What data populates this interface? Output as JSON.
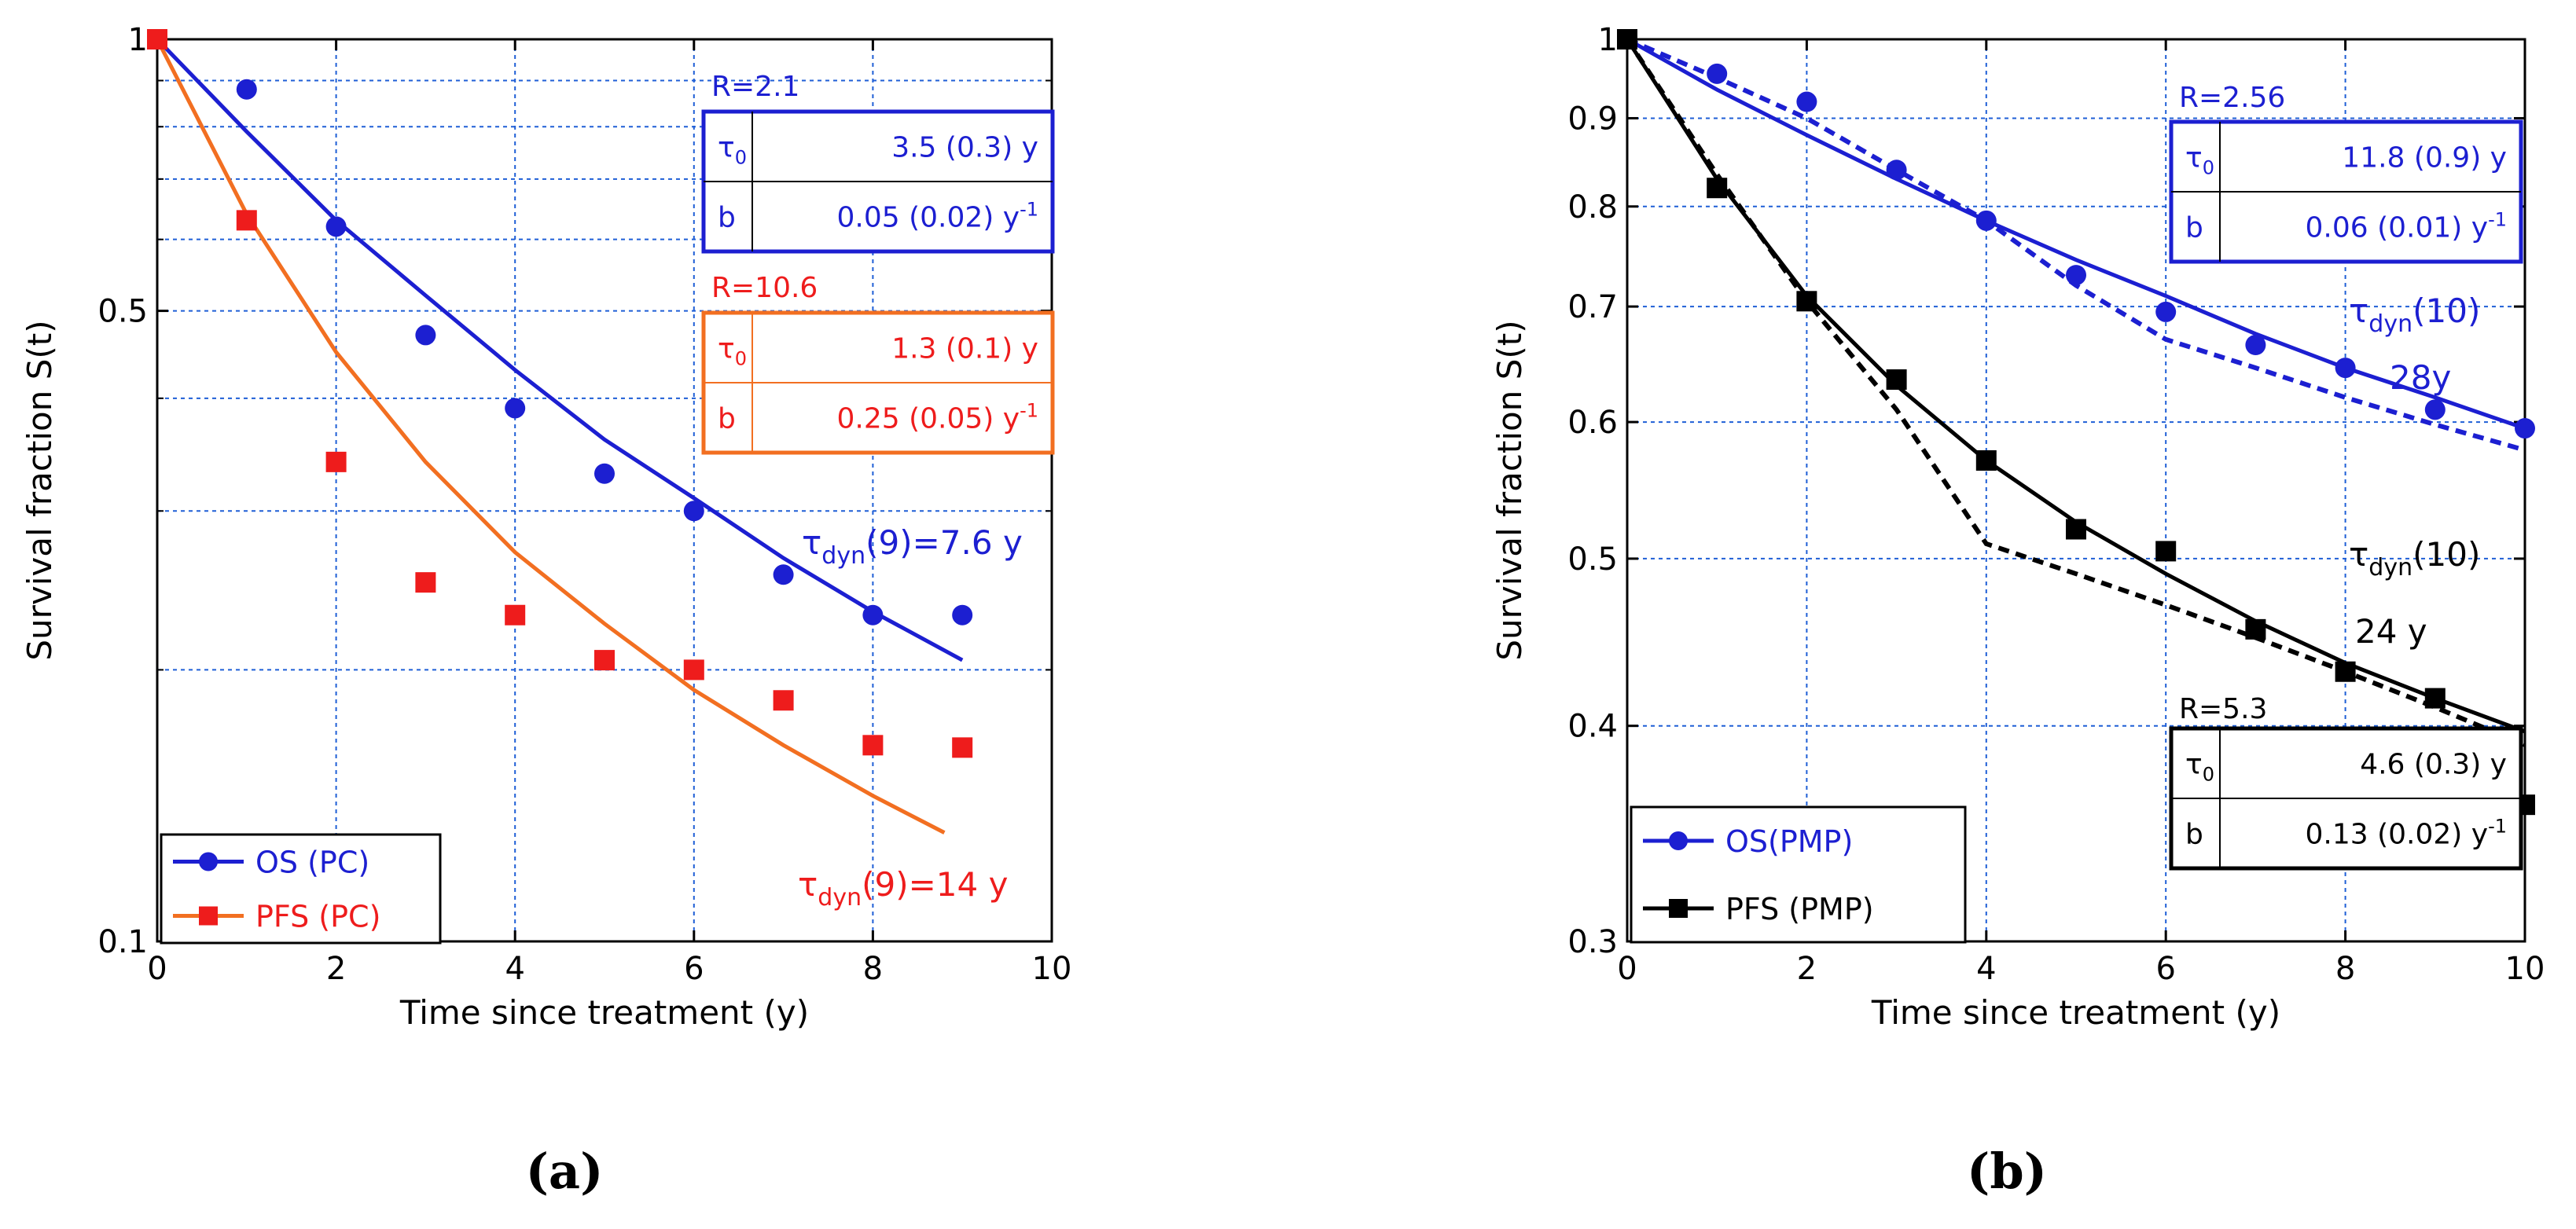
{
  "figure": {
    "panel_a_label": "(a)",
    "panel_b_label": "(b)"
  },
  "chart_data": [
    {
      "type": "scatter",
      "panel": "a",
      "xlabel": "Time since treatment (y)",
      "ylabel": "Survival fraction S(t)",
      "xlim": [
        0,
        10
      ],
      "ylim": [
        0.1,
        1
      ],
      "yscale": "log",
      "grid": true,
      "x_ticks": [
        "0",
        "2",
        "4",
        "6",
        "8",
        "10"
      ],
      "y_tick_labels": [
        "1",
        "0.5",
        "0.1"
      ],
      "y_tick_values": [
        1,
        0.5,
        0.1
      ],
      "y_grid_values": [
        0.2,
        0.3,
        0.4,
        0.5,
        0.6,
        0.7,
        0.8,
        0.9
      ],
      "legend_position": "bottom-left",
      "colors": {
        "OS (PC)": "#1c1fd1",
        "PFS (PC)": "#f26f21",
        "PFS markers": "#ee1c1c",
        "grid": "#1f5fd6"
      },
      "series": [
        {
          "name": "OS (PC)",
          "marker": "circle",
          "points": {
            "x": [
              0,
              1,
              2,
              3,
              4,
              5,
              6,
              7,
              8,
              9
            ],
            "y": [
              1.0,
              0.88,
              0.62,
              0.47,
              0.39,
              0.33,
              0.3,
              0.255,
              0.23,
              0.23
            ]
          },
          "fit": {
            "x": [
              0,
              1,
              2,
              3,
              4,
              5,
              6,
              7,
              8,
              9
            ],
            "y": [
              1.0,
              0.79,
              0.63,
              0.52,
              0.43,
              0.36,
              0.31,
              0.266,
              0.232,
              0.205
            ]
          }
        },
        {
          "name": "PFS (PC)",
          "marker": "square",
          "points": {
            "x": [
              0,
              1,
              2,
              3,
              4,
              5,
              6,
              7,
              8,
              9
            ],
            "y": [
              1.0,
              0.63,
              0.34,
              0.25,
              0.23,
              0.205,
              0.2,
              0.185,
              0.165,
              0.164
            ]
          },
          "fit": {
            "x": [
              0,
              1,
              2,
              3,
              4,
              5,
              6,
              7,
              8,
              8.8
            ],
            "y": [
              1.0,
              0.64,
              0.45,
              0.34,
              0.27,
              0.225,
              0.19,
              0.165,
              0.145,
              0.132
            ]
          }
        }
      ],
      "annotations": [
        {
          "text_parts": [
            "τ",
            "dyn",
            "(9)=7.6 y"
          ],
          "color": "#1c1fd1"
        },
        {
          "text_parts": [
            "τ",
            "dyn",
            "(9)=14 y"
          ],
          "color": "#ee1c1c"
        }
      ],
      "param_tables": [
        {
          "R": "R=2.1",
          "color": "#1c1fd1",
          "rows": [
            {
              "sym": "τ",
              "sub": "0",
              "val": "3.5 (0.3) y",
              "sup": ""
            },
            {
              "sym": "b",
              "sub": "",
              "val": "0.05 (0.02) y",
              "sup": "-1"
            }
          ]
        },
        {
          "R": "R=10.6",
          "color": "#ee1c1c",
          "border": "#f26f21",
          "rows": [
            {
              "sym": "τ",
              "sub": "0",
              "val": "1.3 (0.1) y",
              "sup": ""
            },
            {
              "sym": "b",
              "sub": "",
              "val": "0.25 (0.05) y",
              "sup": "-1"
            }
          ]
        }
      ]
    },
    {
      "type": "scatter",
      "panel": "b",
      "xlabel": "Time since treatment (y)",
      "ylabel": "Survival fraction S(t)",
      "xlim": [
        0,
        10
      ],
      "ylim": [
        0.3,
        1
      ],
      "yscale": "log",
      "grid": true,
      "x_ticks": [
        "0",
        "2",
        "4",
        "6",
        "8",
        "10"
      ],
      "y_tick_labels": [
        "1",
        "0.9",
        "0.8",
        "0.7",
        "0.6",
        "0.5",
        "0.4",
        "0.3"
      ],
      "y_tick_values": [
        1,
        0.9,
        0.8,
        0.7,
        0.6,
        0.5,
        0.4,
        0.3
      ],
      "legend_position": "bottom-left",
      "colors": {
        "OS(PMP)": "#1c1fd1",
        "PFS (PMP)": "#000000",
        "grid": "#1f5fd6"
      },
      "series": [
        {
          "name": "OS(PMP)",
          "marker": "circle",
          "points": {
            "x": [
              0,
              1,
              2,
              3,
              4,
              5,
              6,
              7,
              8,
              9,
              10
            ],
            "y": [
              1.0,
              0.955,
              0.92,
              0.84,
              0.785,
              0.73,
              0.695,
              0.665,
              0.645,
              0.61,
              0.595
            ]
          },
          "fit": {
            "x": [
              0,
              1,
              2,
              3,
              4,
              5,
              6,
              7,
              8,
              9,
              10
            ],
            "y": [
              1.0,
              0.935,
              0.88,
              0.83,
              0.785,
              0.745,
              0.71,
              0.675,
              0.645,
              0.62,
              0.595
            ]
          },
          "fit_dashed": {
            "x": [
              0,
              1,
              2,
              3,
              4,
              5,
              6,
              7,
              8,
              9,
              10
            ],
            "y": [
              1.0,
              0.95,
              0.9,
              0.84,
              0.785,
              0.72,
              0.67,
              0.645,
              0.62,
              0.598,
              0.578
            ]
          }
        },
        {
          "name": "PFS (PMP)",
          "marker": "square",
          "points": {
            "x": [
              0,
              1,
              2,
              3,
              4,
              5,
              6,
              7,
              8,
              9,
              10
            ],
            "y": [
              1.0,
              0.82,
              0.705,
              0.635,
              0.57,
              0.52,
              0.505,
              0.455,
              0.43,
              0.415,
              0.36
            ]
          },
          "fit": {
            "x": [
              0,
              1,
              2,
              3,
              4,
              5,
              6,
              7,
              8,
              9,
              10
            ],
            "y": [
              1.0,
              0.83,
              0.71,
              0.63,
              0.57,
              0.525,
              0.49,
              0.46,
              0.435,
              0.415,
              0.397
            ]
          },
          "fit_dashed": {
            "x": [
              0,
              1,
              2,
              3,
              4,
              5,
              6,
              7,
              8,
              9,
              10
            ],
            "y": [
              1.0,
              0.835,
              0.705,
              0.61,
              0.51,
              0.49,
              0.47,
              0.45,
              0.43,
              0.41,
              0.39
            ]
          }
        }
      ],
      "annotations": [
        {
          "text_parts": [
            "τ",
            "dyn",
            "(10)"
          ],
          "color": "#1c1fd1"
        },
        {
          "text_parts": [
            "",
            "",
            "28y"
          ],
          "color": "#1c1fd1"
        },
        {
          "text_parts": [
            "τ",
            "dyn",
            "(10)"
          ],
          "color": "#000000"
        },
        {
          "text_parts": [
            "",
            "",
            "24 y"
          ],
          "color": "#000000"
        }
      ],
      "param_tables": [
        {
          "R": "R=2.56",
          "color": "#1c1fd1",
          "rows": [
            {
              "sym": "τ",
              "sub": "0",
              "val": "11.8 (0.9) y",
              "sup": ""
            },
            {
              "sym": "b",
              "sub": "",
              "val": "0.06 (0.01) y",
              "sup": "-1"
            }
          ]
        },
        {
          "R": "R=5.3",
          "color": "#000000",
          "rows": [
            {
              "sym": "τ",
              "sub": "0",
              "val": "4.6 (0.3) y",
              "sup": ""
            },
            {
              "sym": "b",
              "sub": "",
              "val": "0.13 (0.02) y",
              "sup": "-1"
            }
          ]
        }
      ]
    }
  ]
}
